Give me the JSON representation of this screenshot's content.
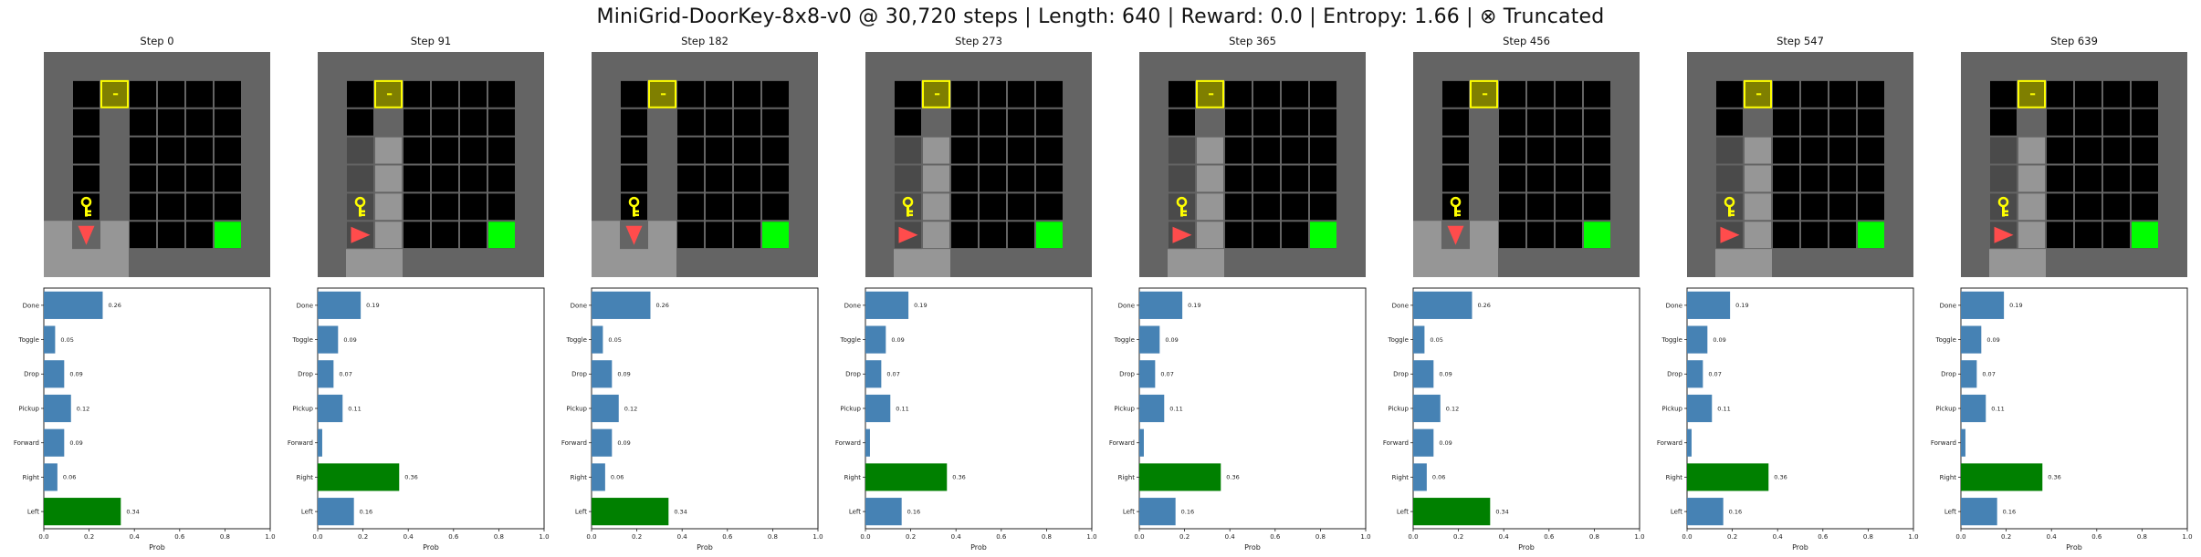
{
  "suptitle": "MiniGrid-DoorKey-8x8-v0 @ 30,720 steps | Length: 640 | Reward: 0.0 | Entropy: 1.66 | ⊗ Truncated",
  "colors": {
    "bar": "#4682b4",
    "bar_selected": "#008000",
    "outer_wall": "#646464",
    "floor": "#000000",
    "visited_floor": "#969696",
    "wall_dim": "#4a4a4a",
    "grid_line": "#646464",
    "door_fill": "#7f7f00",
    "door_border": "#ffff00",
    "key": "#ffff00",
    "goal": "#00ff00",
    "agent": "#ff4c4c"
  },
  "panels": [
    {
      "title": "Step 0",
      "agent_dir": "down",
      "walls_dim": false
    },
    {
      "title": "Step 91",
      "agent_dir": "right",
      "walls_dim": true
    },
    {
      "title": "Step 182",
      "agent_dir": "down",
      "walls_dim": false
    },
    {
      "title": "Step 273",
      "agent_dir": "right",
      "walls_dim": true
    },
    {
      "title": "Step 365",
      "agent_dir": "right",
      "walls_dim": true
    },
    {
      "title": "Step 456",
      "agent_dir": "down",
      "walls_dim": false
    },
    {
      "title": "Step 547",
      "agent_dir": "right",
      "walls_dim": true
    },
    {
      "title": "Step 639",
      "agent_dir": "right",
      "walls_dim": true
    }
  ],
  "chart_data": [
    {
      "type": "bar",
      "orientation": "horizontal",
      "title": "Step 0",
      "categories": [
        "Done",
        "Toggle",
        "Drop",
        "Pickup",
        "Forward",
        "Right",
        "Left"
      ],
      "values": [
        0.26,
        0.05,
        0.09,
        0.12,
        0.09,
        0.06,
        0.34
      ],
      "value_labels": [
        "0.26",
        "0.05",
        "0.09",
        "0.12",
        "0.09",
        "0.06",
        "0.34"
      ],
      "selected": "Left",
      "xlabel": "Prob",
      "xlim": [
        0,
        1
      ],
      "xticks": [
        "0.0",
        "0.2",
        "0.4",
        "0.6",
        "0.8",
        "1.0"
      ]
    },
    {
      "type": "bar",
      "orientation": "horizontal",
      "title": "Step 91",
      "categories": [
        "Done",
        "Toggle",
        "Drop",
        "Pickup",
        "Forward",
        "Right",
        "Left"
      ],
      "values": [
        0.19,
        0.09,
        0.07,
        0.11,
        0.02,
        0.36,
        0.16
      ],
      "value_labels": [
        "0.19",
        "0.09",
        "0.07",
        "0.11",
        "",
        "0.36",
        "0.16"
      ],
      "selected": "Right",
      "xlabel": "Prob",
      "xlim": [
        0,
        1
      ],
      "xticks": [
        "0.0",
        "0.2",
        "0.4",
        "0.6",
        "0.8",
        "1.0"
      ]
    },
    {
      "type": "bar",
      "orientation": "horizontal",
      "title": "Step 182",
      "categories": [
        "Done",
        "Toggle",
        "Drop",
        "Pickup",
        "Forward",
        "Right",
        "Left"
      ],
      "values": [
        0.26,
        0.05,
        0.09,
        0.12,
        0.09,
        0.06,
        0.34
      ],
      "value_labels": [
        "0.26",
        "0.05",
        "0.09",
        "0.12",
        "0.09",
        "0.06",
        "0.34"
      ],
      "selected": "Left",
      "xlabel": "Prob",
      "xlim": [
        0,
        1
      ],
      "xticks": [
        "0.0",
        "0.2",
        "0.4",
        "0.6",
        "0.8",
        "1.0"
      ]
    },
    {
      "type": "bar",
      "orientation": "horizontal",
      "title": "Step 273",
      "categories": [
        "Done",
        "Toggle",
        "Drop",
        "Pickup",
        "Forward",
        "Right",
        "Left"
      ],
      "values": [
        0.19,
        0.09,
        0.07,
        0.11,
        0.02,
        0.36,
        0.16
      ],
      "value_labels": [
        "0.19",
        "0.09",
        "0.07",
        "0.11",
        "",
        "0.36",
        "0.16"
      ],
      "selected": "Right",
      "xlabel": "Prob",
      "xlim": [
        0,
        1
      ],
      "xticks": [
        "0.0",
        "0.2",
        "0.4",
        "0.6",
        "0.8",
        "1.0"
      ]
    },
    {
      "type": "bar",
      "orientation": "horizontal",
      "title": "Step 365",
      "categories": [
        "Done",
        "Toggle",
        "Drop",
        "Pickup",
        "Forward",
        "Right",
        "Left"
      ],
      "values": [
        0.19,
        0.09,
        0.07,
        0.11,
        0.02,
        0.36,
        0.16
      ],
      "value_labels": [
        "0.19",
        "0.09",
        "0.07",
        "0.11",
        "",
        "0.36",
        "0.16"
      ],
      "selected": "Right",
      "xlabel": "Prob",
      "xlim": [
        0,
        1
      ],
      "xticks": [
        "0.0",
        "0.2",
        "0.4",
        "0.6",
        "0.8",
        "1.0"
      ]
    },
    {
      "type": "bar",
      "orientation": "horizontal",
      "title": "Step 456",
      "categories": [
        "Done",
        "Toggle",
        "Drop",
        "Pickup",
        "Forward",
        "Right",
        "Left"
      ],
      "values": [
        0.26,
        0.05,
        0.09,
        0.12,
        0.09,
        0.06,
        0.34
      ],
      "value_labels": [
        "0.26",
        "0.05",
        "0.09",
        "0.12",
        "0.09",
        "0.06",
        "0.34"
      ],
      "selected": "Left",
      "xlabel": "Prob",
      "xlim": [
        0,
        1
      ],
      "xticks": [
        "0.0",
        "0.2",
        "0.4",
        "0.6",
        "0.8",
        "1.0"
      ]
    },
    {
      "type": "bar",
      "orientation": "horizontal",
      "title": "Step 547",
      "categories": [
        "Done",
        "Toggle",
        "Drop",
        "Pickup",
        "Forward",
        "Right",
        "Left"
      ],
      "values": [
        0.19,
        0.09,
        0.07,
        0.11,
        0.02,
        0.36,
        0.16
      ],
      "value_labels": [
        "0.19",
        "0.09",
        "0.07",
        "0.11",
        "",
        "0.36",
        "0.16"
      ],
      "selected": "Right",
      "xlabel": "Prob",
      "xlim": [
        0,
        1
      ],
      "xticks": [
        "0.0",
        "0.2",
        "0.4",
        "0.6",
        "0.8",
        "1.0"
      ]
    },
    {
      "type": "bar",
      "orientation": "horizontal",
      "title": "Step 639",
      "categories": [
        "Done",
        "Toggle",
        "Drop",
        "Pickup",
        "Forward",
        "Right",
        "Left"
      ],
      "values": [
        0.19,
        0.09,
        0.07,
        0.11,
        0.02,
        0.36,
        0.16
      ],
      "value_labels": [
        "0.19",
        "0.09",
        "0.07",
        "0.11",
        "",
        "0.36",
        "0.16"
      ],
      "selected": "Right",
      "xlabel": "Prob",
      "xlim": [
        0,
        1
      ],
      "xticks": [
        "0.0",
        "0.2",
        "0.4",
        "0.6",
        "0.8",
        "1.0"
      ]
    }
  ]
}
